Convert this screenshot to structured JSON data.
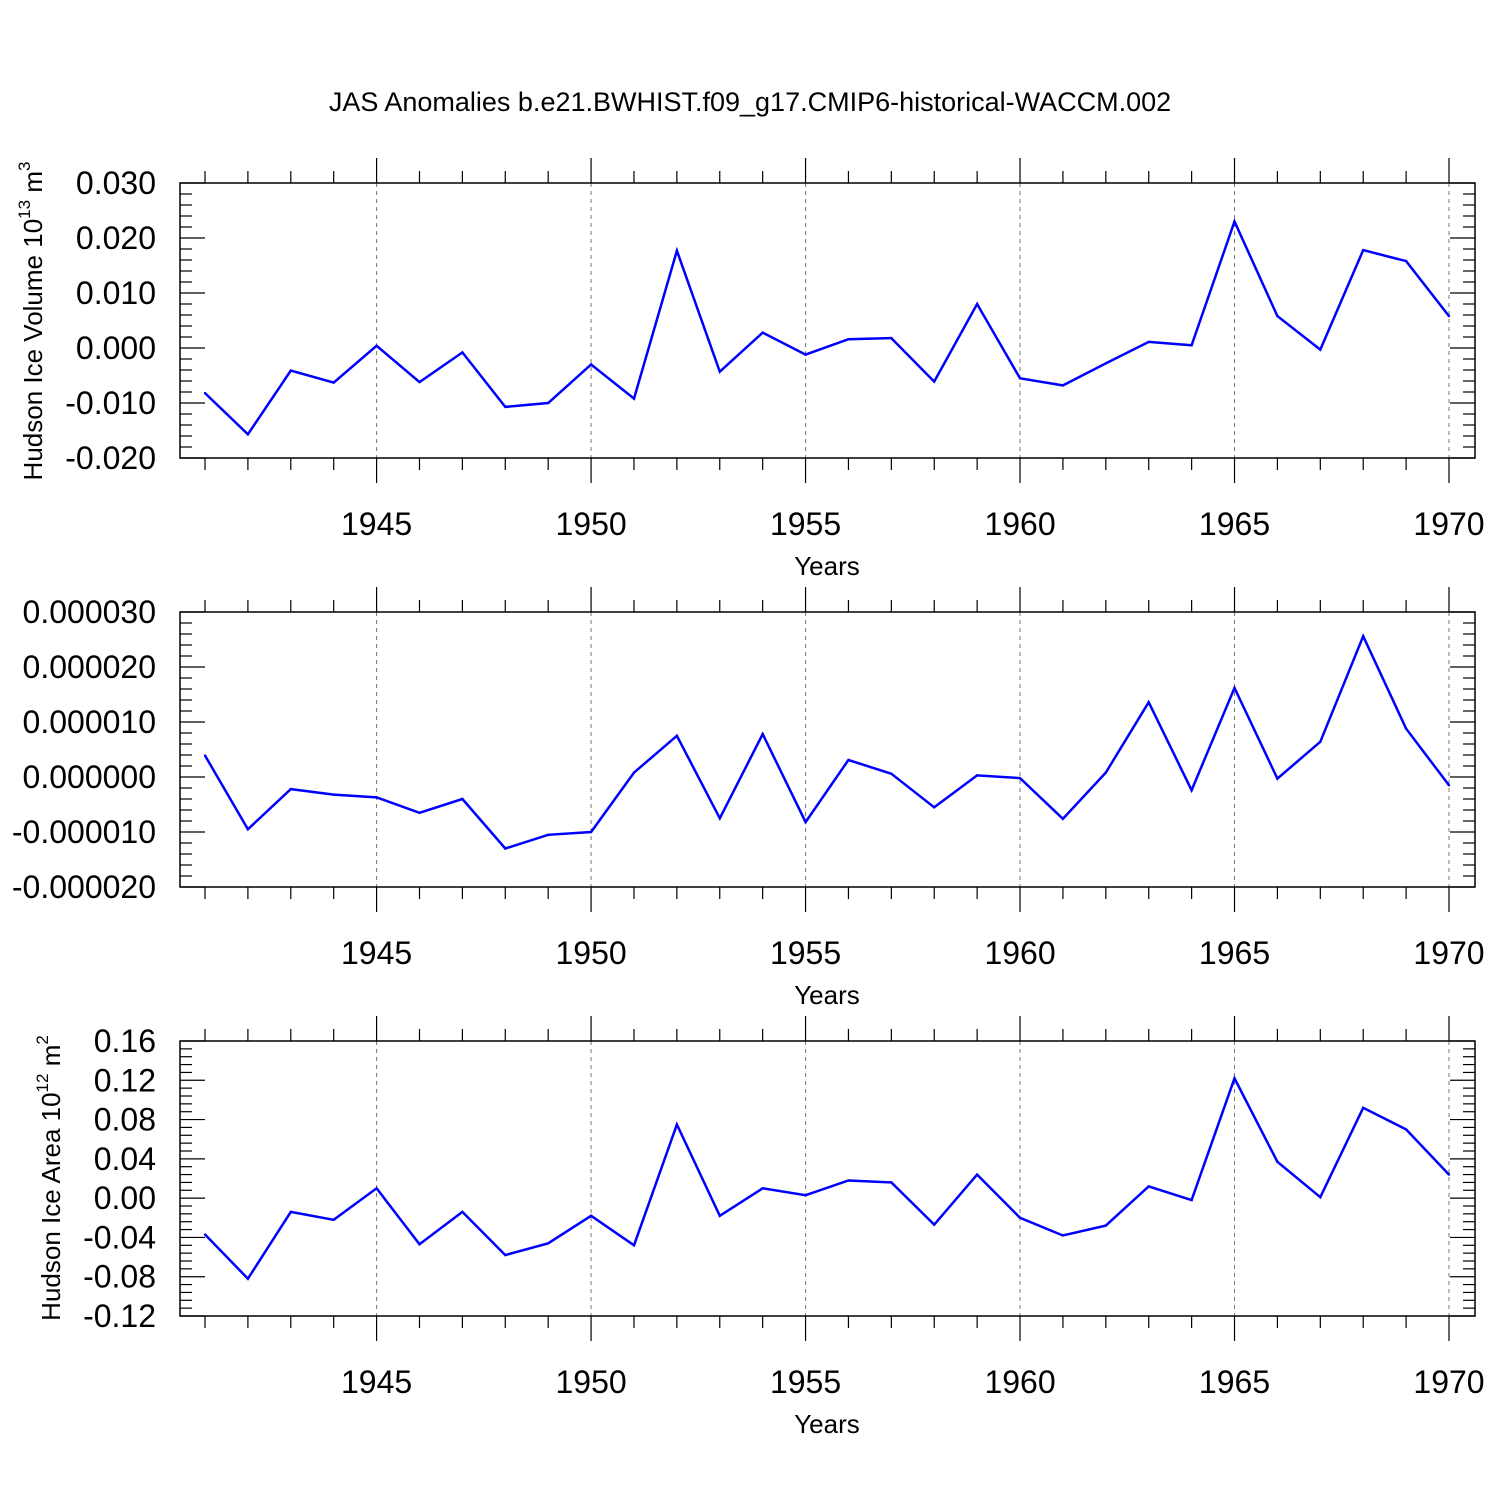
{
  "title": "JAS Anomalies b.e21.BWHIST.f09_g17.CMIP6-historical-WACCM.002",
  "line_color": "#0000ff",
  "chart_data": [
    {
      "type": "line",
      "title": "",
      "xlabel": "Years",
      "ylabel": {
        "text": "Hudson Ice Volume 10",
        "exponent": "13",
        "unit": " m",
        "unit_exponent": "3"
      },
      "x": [
        1941,
        1942,
        1943,
        1944,
        1945,
        1946,
        1947,
        1948,
        1949,
        1950,
        1951,
        1952,
        1953,
        1954,
        1955,
        1956,
        1957,
        1958,
        1959,
        1960,
        1961,
        1962,
        1963,
        1964,
        1965,
        1966,
        1967,
        1968,
        1969,
        1970
      ],
      "values": [
        -0.0082,
        -0.0157,
        -0.0041,
        -0.0063,
        0.0004,
        -0.0062,
        -0.0008,
        -0.0107,
        -0.01,
        -0.003,
        -0.0092,
        0.0177,
        -0.0043,
        0.0028,
        -0.0012,
        0.0016,
        0.0018,
        -0.0061,
        0.008,
        -0.0055,
        -0.0068,
        -0.0028,
        0.0011,
        0.0005,
        0.023,
        0.0058,
        -0.0003,
        0.0178,
        0.0158,
        0.0058
      ],
      "xlim": [
        1941,
        1970
      ],
      "ylim": [
        -0.02,
        0.03
      ],
      "xticks": [
        1945,
        1950,
        1955,
        1960,
        1965,
        1970
      ],
      "yticks": [
        -0.02,
        -0.01,
        0.0,
        0.01,
        0.02,
        0.03
      ],
      "ytick_labels": [
        "-0.020",
        "-0.010",
        "0.000",
        "0.010",
        "0.020",
        "0.030"
      ],
      "xtick_labels": [
        "1945",
        "1950",
        "1955",
        "1960",
        "1965",
        "1970"
      ]
    },
    {
      "type": "line",
      "title": "",
      "xlabel": "Years",
      "ylabel": null,
      "x": [
        1941,
        1942,
        1943,
        1944,
        1945,
        1946,
        1947,
        1948,
        1949,
        1950,
        1951,
        1952,
        1953,
        1954,
        1955,
        1956,
        1957,
        1958,
        1959,
        1960,
        1961,
        1962,
        1963,
        1964,
        1965,
        1966,
        1967,
        1968,
        1969,
        1970
      ],
      "values": [
        3.9e-06,
        -9.5e-06,
        -2.2e-06,
        -3.2e-06,
        -3.7e-06,
        -6.5e-06,
        -4e-06,
        -1.3e-05,
        -1.05e-05,
        -1e-05,
        8e-07,
        7.5e-06,
        -7.5e-06,
        7.8e-06,
        -8.2e-06,
        3.1e-06,
        6e-07,
        -5.5e-06,
        3e-07,
        -2e-07,
        -7.6e-06,
        8e-07,
        1.36e-05,
        -2.4e-06,
        1.62e-05,
        -3e-07,
        6.4e-06,
        2.56e-05,
        8.8e-06,
        -1.5e-06
      ],
      "xlim": [
        1941,
        1970
      ],
      "ylim": [
        -2e-05,
        3e-05
      ],
      "xticks": [
        1945,
        1950,
        1955,
        1960,
        1965,
        1970
      ],
      "yticks": [
        -2e-05,
        -1e-05,
        0.0,
        1e-05,
        2e-05,
        3e-05
      ],
      "ytick_labels": [
        "-0.000020",
        "-0.000010",
        "0.000000",
        "0.000010",
        "0.000020",
        "0.000030"
      ],
      "xtick_labels": [
        "1945",
        "1950",
        "1955",
        "1960",
        "1965",
        "1970"
      ]
    },
    {
      "type": "line",
      "title": "",
      "xlabel": "Years",
      "ylabel": {
        "text": "Hudson Ice Area 10",
        "exponent": "12",
        "unit": " m",
        "unit_exponent": "2"
      },
      "x": [
        1941,
        1942,
        1943,
        1944,
        1945,
        1946,
        1947,
        1948,
        1949,
        1950,
        1951,
        1952,
        1953,
        1954,
        1955,
        1956,
        1957,
        1958,
        1959,
        1960,
        1961,
        1962,
        1963,
        1964,
        1965,
        1966,
        1967,
        1968,
        1969,
        1970
      ],
      "values": [
        -0.037,
        -0.082,
        -0.014,
        -0.022,
        0.01,
        -0.047,
        -0.014,
        -0.058,
        -0.046,
        -0.018,
        -0.048,
        0.075,
        -0.018,
        0.01,
        0.003,
        0.018,
        0.016,
        -0.027,
        0.024,
        -0.02,
        -0.038,
        -0.028,
        0.012,
        -0.002,
        0.122,
        0.037,
        0.001,
        0.092,
        0.07,
        0.024
      ],
      "xlim": [
        1941,
        1970
      ],
      "ylim": [
        -0.12,
        0.16
      ],
      "xticks": [
        1945,
        1950,
        1955,
        1960,
        1965,
        1970
      ],
      "yticks": [
        -0.12,
        -0.08,
        -0.04,
        0.0,
        0.04,
        0.08,
        0.12,
        0.16
      ],
      "ytick_labels": [
        "-0.12",
        "-0.08",
        "-0.04",
        "0.00",
        "0.04",
        "0.08",
        "0.12",
        "0.16"
      ],
      "xtick_labels": [
        "1945",
        "1950",
        "1955",
        "1960",
        "1965",
        "1970"
      ]
    }
  ]
}
